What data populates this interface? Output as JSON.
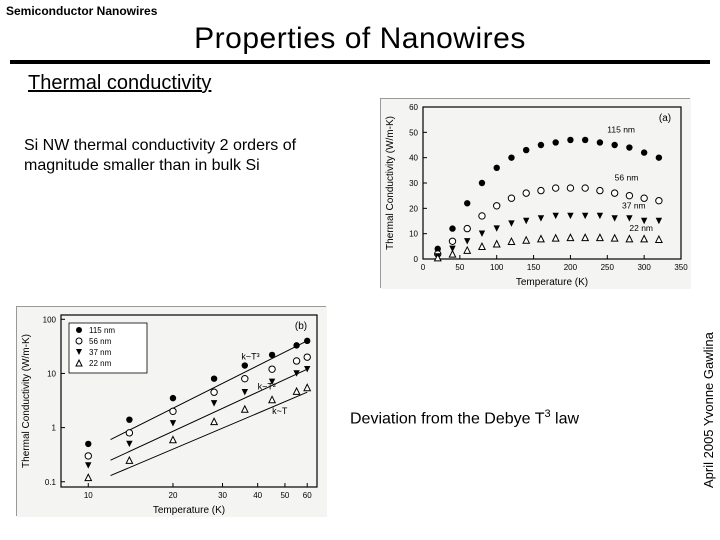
{
  "header_small": "Semiconductor Nanowires",
  "title": "Properties of Nanowires",
  "section_heading": "Thermal conductivity",
  "body1": "Si NW thermal conductivity 2 orders of magnitude smaller than in bulk Si",
  "body2_pre": "Deviation from the Debye T",
  "body2_sup": "3",
  "body2_post": " law",
  "footer": "April 2005 Yvonne Gawlina",
  "chart_a": {
    "type": "scatter",
    "label_tag": "(a)",
    "xlabel": "Temperature (K)",
    "ylabel": "Thermal Conductivity (W/m-K)",
    "xlim": [
      0,
      350
    ],
    "ylim": [
      0,
      60
    ],
    "xticks": [
      0,
      50,
      100,
      150,
      200,
      250,
      300,
      350
    ],
    "yticks": [
      0,
      10,
      20,
      30,
      40,
      50,
      60
    ],
    "background_color": "#f4f4f2",
    "axis_color": "#000000",
    "tick_color": "#000000",
    "marker_size": 3.2,
    "label_fontsize": 10,
    "tick_fontsize": 8,
    "series": [
      {
        "name": "115 nm",
        "marker": "filled-circle",
        "color": "#000000",
        "x": [
          20,
          40,
          60,
          80,
          100,
          120,
          140,
          160,
          180,
          200,
          220,
          240,
          260,
          280,
          300,
          320
        ],
        "y": [
          4,
          12,
          22,
          30,
          36,
          40,
          43,
          45,
          46,
          47,
          47,
          46,
          45,
          44,
          42,
          40
        ]
      },
      {
        "name": "56 nm",
        "marker": "open-circle",
        "color": "#000000",
        "x": [
          20,
          40,
          60,
          80,
          100,
          120,
          140,
          160,
          180,
          200,
          220,
          240,
          260,
          280,
          300,
          320
        ],
        "y": [
          2,
          7,
          12,
          17,
          21,
          24,
          26,
          27,
          28,
          28,
          28,
          27,
          26,
          25,
          24,
          23
        ]
      },
      {
        "name": "37 nm",
        "marker": "filled-down-triangle",
        "color": "#000000",
        "x": [
          20,
          40,
          60,
          80,
          100,
          120,
          140,
          160,
          180,
          200,
          220,
          240,
          260,
          280,
          300,
          320
        ],
        "y": [
          1,
          4,
          7,
          10,
          12,
          14,
          15,
          16,
          17,
          17,
          17,
          17,
          16,
          16,
          15,
          15
        ]
      },
      {
        "name": "22 nm",
        "marker": "open-up-triangle",
        "color": "#000000",
        "x": [
          20,
          40,
          60,
          80,
          100,
          120,
          140,
          160,
          180,
          200,
          220,
          240,
          260,
          280,
          300,
          320
        ],
        "y": [
          0.5,
          2,
          3.5,
          5,
          6,
          7,
          7.5,
          8,
          8.3,
          8.5,
          8.5,
          8.5,
          8.3,
          8,
          8,
          7.8
        ]
      }
    ]
  },
  "chart_b": {
    "type": "scatter-log",
    "label_tag": "(b)",
    "xlabel": "Temperature (K)",
    "ylabel": "Thermal Conductivity (W/m-K)",
    "xlim": [
      8,
      65
    ],
    "ylim": [
      0.08,
      120
    ],
    "xticks": [
      10,
      20,
      30,
      40,
      50,
      60
    ],
    "yticks": [
      0.1,
      1,
      10,
      100
    ],
    "yscale": "log",
    "xscale": "log",
    "background_color": "#f4f4f2",
    "axis_color": "#000000",
    "marker_size": 3.2,
    "label_fontsize": 10,
    "tick_fontsize": 8,
    "legend": {
      "position": "upper-left",
      "items": [
        {
          "label": "115 nm",
          "marker": "filled-circle"
        },
        {
          "label": "56 nm",
          "marker": "open-circle"
        },
        {
          "label": "37 nm",
          "marker": "filled-down-triangle"
        },
        {
          "label": "22 nm",
          "marker": "open-up-triangle"
        }
      ],
      "border_color": "#000000"
    },
    "trend_labels": [
      "k~T³",
      "k~T²",
      "k~T"
    ],
    "trend_color": "#000000",
    "series": [
      {
        "name": "115 nm",
        "marker": "filled-circle",
        "color": "#000000",
        "x": [
          10,
          14,
          20,
          28,
          36,
          45,
          55,
          60
        ],
        "y": [
          0.5,
          1.4,
          3.5,
          8,
          14,
          22,
          33,
          40
        ]
      },
      {
        "name": "56 nm",
        "marker": "open-circle",
        "color": "#000000",
        "x": [
          10,
          14,
          20,
          28,
          36,
          45,
          55,
          60
        ],
        "y": [
          0.3,
          0.8,
          2,
          4.5,
          8,
          12,
          17,
          20
        ]
      },
      {
        "name": "37 nm",
        "marker": "filled-down-triangle",
        "color": "#000000",
        "x": [
          10,
          14,
          20,
          28,
          36,
          45,
          55,
          60
        ],
        "y": [
          0.2,
          0.5,
          1.2,
          2.8,
          4.5,
          7,
          10,
          12
        ]
      },
      {
        "name": "22 nm",
        "marker": "open-up-triangle",
        "color": "#000000",
        "x": [
          10,
          14,
          20,
          28,
          36,
          45,
          55,
          60
        ],
        "y": [
          0.12,
          0.25,
          0.6,
          1.3,
          2.2,
          3.3,
          4.7,
          5.5
        ]
      }
    ],
    "trend_lines": [
      {
        "label": "k~T³",
        "x": [
          12,
          60
        ],
        "y": [
          0.6,
          40
        ]
      },
      {
        "label": "k~T²",
        "x": [
          12,
          60
        ],
        "y": [
          0.25,
          12
        ]
      },
      {
        "label": "k~T",
        "x": [
          12,
          60
        ],
        "y": [
          0.13,
          4.5
        ]
      }
    ]
  }
}
